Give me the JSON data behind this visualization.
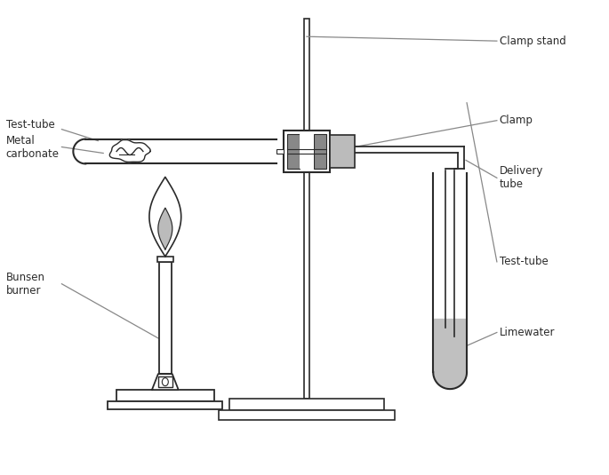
{
  "background_color": "#ffffff",
  "line_color": "#2a2a2a",
  "gray_color": "#999999",
  "dark_gray": "#888888",
  "light_gray": "#bbbbbb",
  "limewater_color": "#c0c0c0",
  "labels": {
    "clamp_stand": "Clamp stand",
    "clamp": "Clamp",
    "delivery_tube": "Delivery\ntube",
    "test_tube_top": "Test-tube",
    "metal_carbonate": "Metal\ncarbonate",
    "bunsen_burner": "Bunsen\nburner",
    "test_tube_bottom": "Test-tube",
    "limewater": "Limewater"
  },
  "font_size": 8.5
}
